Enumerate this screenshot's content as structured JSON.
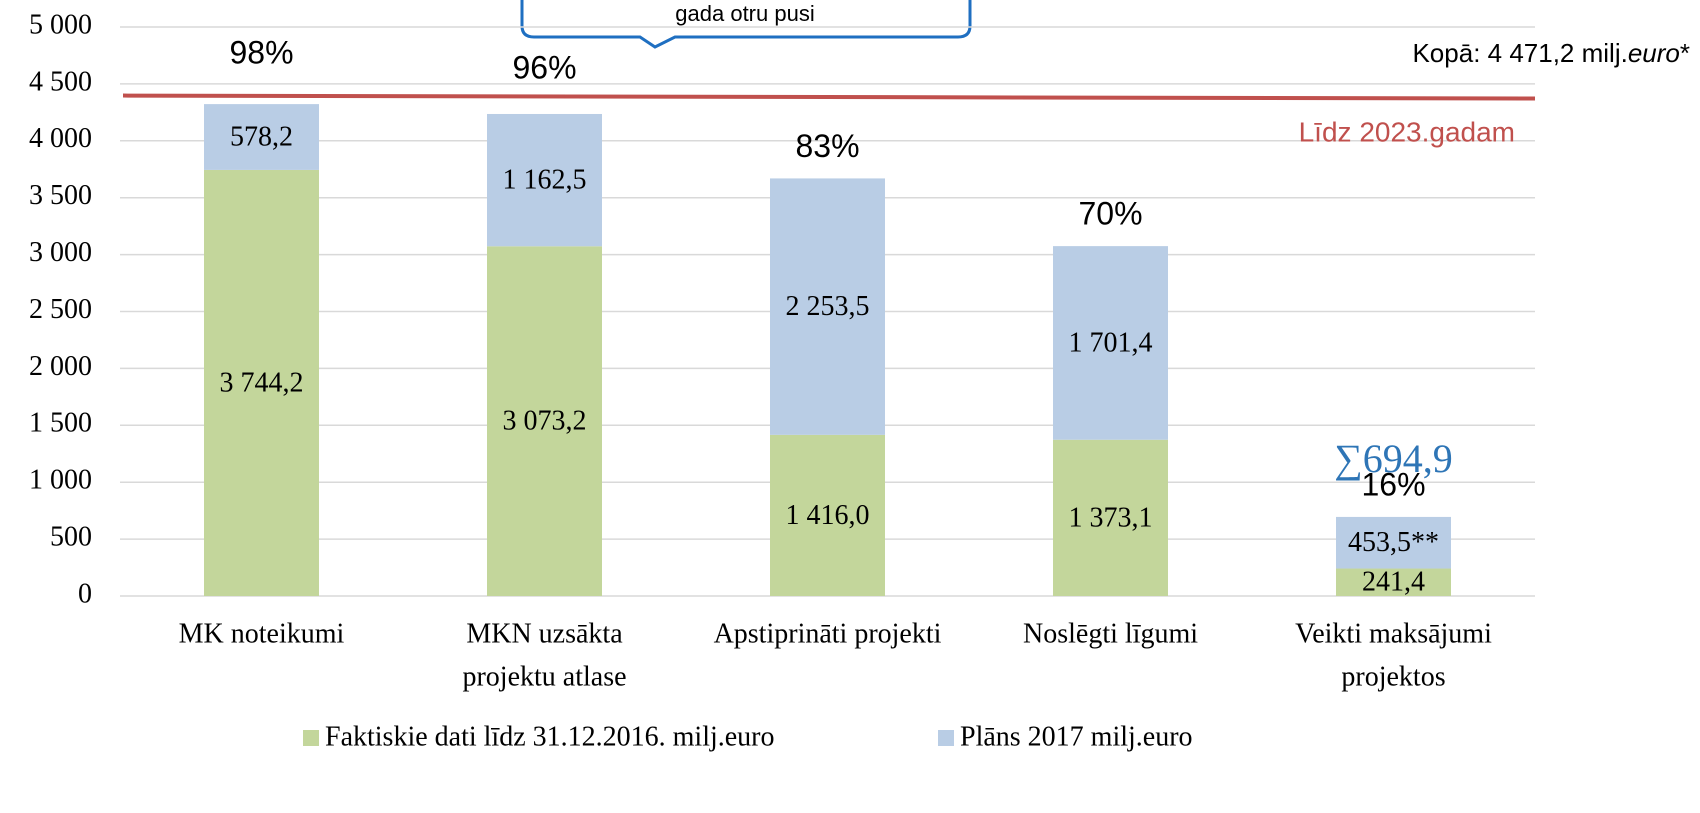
{
  "chart_data": {
    "type": "stacked_bar",
    "callout": "gada otru pusi",
    "categories": [
      [
        "MK noteikumi"
      ],
      [
        "MKN uzsākta",
        "projektu atlase"
      ],
      [
        "Apstiprināti projekti"
      ],
      [
        "Noslēgti līgumi"
      ],
      [
        "Veikti maksājumi",
        "projektos"
      ]
    ],
    "series": [
      {
        "name": "Faktiskie dati līdz 31.12.2016. milj.euro",
        "color": "#c3d69b",
        "values": [
          3744.2,
          3073.2,
          1416.0,
          1373.1,
          241.4
        ],
        "value_labels": [
          "3 744,2",
          "3 073,2",
          "1 416,0",
          "1 373,1",
          "241,4"
        ]
      },
      {
        "name": "Plāns 2017 milj.euro",
        "color": "#b9cde5",
        "values": [
          578.2,
          1162.5,
          2253.5,
          1701.4,
          453.5
        ],
        "value_labels": [
          "578,2",
          "1 162,5",
          "2 253,5",
          "1 701,4",
          "453,5**"
        ]
      }
    ],
    "percent_labels": [
      "98%",
      "96%",
      "83%",
      "70%",
      "16%"
    ],
    "sum_label": "∑694,9",
    "reference_line": {
      "value": 4380,
      "label": "Līdz 2023.gadam",
      "color": "#c0504d"
    },
    "total_label": {
      "prefix": "Kopā: 4 471,2 milj.",
      "italic": "euro",
      "suffix": "*"
    },
    "ylim": [
      0,
      5000
    ],
    "yticks": [
      0,
      500,
      {
        "value": 1000,
        "label": "1 000"
      },
      {
        "value": 1500,
        "label": "1 500"
      },
      {
        "value": 2000,
        "label": "2 000"
      },
      {
        "value": 2500,
        "label": "2 500"
      },
      {
        "value": 3000,
        "label": "3 000"
      },
      {
        "value": 3500,
        "label": "3 500"
      },
      {
        "value": 4000,
        "label": "4 000"
      },
      {
        "value": 4500,
        "label": "4 500"
      },
      {
        "value": 5000,
        "label": "5 000"
      }
    ],
    "grid": true
  }
}
